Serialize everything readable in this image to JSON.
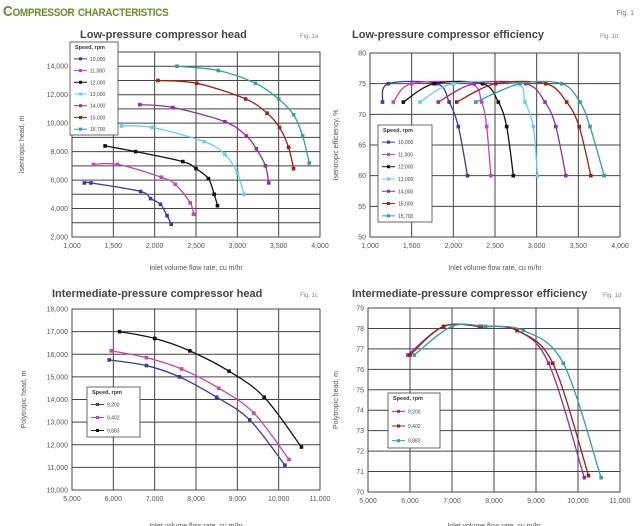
{
  "header": {
    "title": "Compressor characteristics",
    "fig": "Fig. 1"
  },
  "chart_data": [
    {
      "type": "line",
      "title": "Low-pressure compressor head",
      "fig": "Fig. 1a",
      "xlabel": "Inlet volume flow rate, cu m/hr",
      "ylabel": "Isentropic head, m",
      "xlim": [
        1000,
        4000
      ],
      "ylim": [
        2000,
        15000
      ],
      "xticks": [
        1000,
        1500,
        2000,
        2500,
        3000,
        3500,
        4000
      ],
      "yticks": [
        2000,
        4000,
        6000,
        8000,
        10000,
        12000,
        14000
      ],
      "xgrid": 500,
      "ygrid": 1000,
      "grid": true,
      "legend_title": "Speed, rpm",
      "legend_position": "top-left",
      "series": [
        {
          "name": "10,000",
          "color": "#3a3aa0",
          "points": [
            [
              1150,
              5800
            ],
            [
              1230,
              5800
            ],
            [
              1830,
              5200
            ],
            [
              1950,
              4700
            ],
            [
              2070,
              4300
            ],
            [
              2150,
              3500
            ],
            [
              2200,
              2900
            ]
          ]
        },
        {
          "name": "11,000",
          "color": "#d040b0",
          "points": [
            [
              1260,
              7100
            ],
            [
              1550,
              7100
            ],
            [
              2080,
              6200
            ],
            [
              2250,
              5700
            ],
            [
              2430,
              4400
            ],
            [
              2470,
              3600
            ]
          ]
        },
        {
          "name": "12,000",
          "color": "#111111",
          "points": [
            [
              1400,
              8400
            ],
            [
              1770,
              8000
            ],
            [
              2340,
              7300
            ],
            [
              2500,
              6800
            ],
            [
              2650,
              6100
            ],
            [
              2720,
              5000
            ],
            [
              2760,
              4200
            ]
          ]
        },
        {
          "name": "13,000",
          "color": "#60d0f0",
          "points": [
            [
              1600,
              9800
            ],
            [
              1970,
              9700
            ],
            [
              2600,
              8700
            ],
            [
              2850,
              7800
            ],
            [
              3000,
              6500
            ],
            [
              3080,
              5000
            ]
          ]
        },
        {
          "name": "14,000",
          "color": "#9030a0",
          "points": [
            [
              1820,
              11300
            ],
            [
              2220,
              11100
            ],
            [
              2850,
              10100
            ],
            [
              3110,
              9100
            ],
            [
              3230,
              8200
            ],
            [
              3340,
              7000
            ],
            [
              3380,
              5800
            ]
          ]
        },
        {
          "name": "15,000",
          "color": "#a02010",
          "points": [
            [
              2040,
              13000
            ],
            [
              2510,
              12800
            ],
            [
              3100,
              11700
            ],
            [
              3360,
              10700
            ],
            [
              3510,
              9700
            ],
            [
              3620,
              8300
            ],
            [
              3680,
              6800
            ]
          ]
        },
        {
          "name": "15,700",
          "color": "#30a0a0",
          "points": [
            [
              2270,
              14000
            ],
            [
              2770,
              13700
            ],
            [
              3220,
              12800
            ],
            [
              3500,
              11700
            ],
            [
              3680,
              10600
            ],
            [
              3790,
              9100
            ],
            [
              3870,
              7200
            ]
          ]
        }
      ]
    },
    {
      "type": "line",
      "title": "Low-pressure compressor efficiency",
      "fig": "Fig. 1b",
      "xlabel": "Inlet volume flow rate, cu m/hr",
      "ylabel": "Isentropic efficiency, %",
      "xlim": [
        1000,
        4000
      ],
      "ylim": [
        50,
        80
      ],
      "xticks": [
        1000,
        1500,
        2000,
        2500,
        3000,
        3500,
        4000
      ],
      "yticks": [
        50,
        55,
        60,
        65,
        70,
        75,
        80
      ],
      "xgrid": 500,
      "ygrid": 5,
      "grid": true,
      "legend_title": "Speed, rpm",
      "legend_position": "bottom-left",
      "series": [
        {
          "name": "10,000",
          "color": "#3a3aa0",
          "points": [
            [
              1150,
              72
            ],
            [
              1220,
              75
            ],
            [
              1800,
              75
            ],
            [
              1950,
              72
            ],
            [
              2060,
              68
            ],
            [
              2170,
              60
            ]
          ]
        },
        {
          "name": "11,000",
          "color": "#d040b0",
          "points": [
            [
              1280,
              72
            ],
            [
              1500,
              75
            ],
            [
              2200,
              75
            ],
            [
              2340,
              72
            ],
            [
              2400,
              68
            ],
            [
              2450,
              60
            ]
          ]
        },
        {
          "name": "12,000",
          "color": "#111111",
          "points": [
            [
              1400,
              72
            ],
            [
              1770,
              75
            ],
            [
              2350,
              75
            ],
            [
              2540,
              72
            ],
            [
              2640,
              68
            ],
            [
              2720,
              60
            ]
          ]
        },
        {
          "name": "13,000",
          "color": "#60d0f0",
          "points": [
            [
              1600,
              72
            ],
            [
              2000,
              75
            ],
            [
              2750,
              75
            ],
            [
              2860,
              72
            ],
            [
              2960,
              68
            ],
            [
              3010,
              60
            ]
          ]
        },
        {
          "name": "14,000",
          "color": "#9030a0",
          "points": [
            [
              1820,
              72
            ],
            [
              2250,
              75
            ],
            [
              2870,
              75
            ],
            [
              3100,
              72
            ],
            [
              3230,
              68
            ],
            [
              3350,
              60
            ]
          ]
        },
        {
          "name": "15,000",
          "color": "#a02010",
          "points": [
            [
              2040,
              72
            ],
            [
              2510,
              75
            ],
            [
              3110,
              75
            ],
            [
              3360,
              72
            ],
            [
              3510,
              68
            ],
            [
              3650,
              60
            ]
          ]
        },
        {
          "name": "15,700",
          "color": "#30a0a0",
          "points": [
            [
              2270,
              72
            ],
            [
              2800,
              75
            ],
            [
              3300,
              75
            ],
            [
              3520,
              72
            ],
            [
              3640,
              68
            ],
            [
              3810,
              60
            ]
          ]
        }
      ]
    },
    {
      "type": "line",
      "title": "Intermediate-pressure compressor head",
      "fig": "Fig. 1c",
      "xlabel": "Inlet volume flow rate, cu m/hr",
      "ylabel": "Polytropic head, m",
      "xlim": [
        5000,
        11000
      ],
      "ylim": [
        10000,
        18000
      ],
      "xticks": [
        5000,
        6000,
        7000,
        8000,
        9000,
        10000,
        11000
      ],
      "yticks": [
        10000,
        11000,
        12000,
        13000,
        14000,
        15000,
        16000,
        17000,
        18000
      ],
      "xgrid": 1000,
      "ygrid": 1000,
      "grid": true,
      "legend_title": "Speed, rpm",
      "legend_position": "center-left",
      "series": [
        {
          "name": "9,200",
          "color": "#3a3aa0",
          "points": [
            [
              5900,
              15750
            ],
            [
              6800,
              15500
            ],
            [
              7600,
              15000
            ],
            [
              8500,
              14100
            ],
            [
              9300,
              13100
            ],
            [
              10150,
              11100
            ]
          ]
        },
        {
          "name": "9,402",
          "color": "#d040b0",
          "points": [
            [
              5950,
              16150
            ],
            [
              6800,
              15850
            ],
            [
              7650,
              15350
            ],
            [
              8550,
              14500
            ],
            [
              9400,
              13400
            ],
            [
              10250,
              11350
            ]
          ]
        },
        {
          "name": "9,883",
          "color": "#111111",
          "points": [
            [
              6150,
              17000
            ],
            [
              7000,
              16700
            ],
            [
              7850,
              16150
            ],
            [
              8800,
              15250
            ],
            [
              9650,
              14100
            ],
            [
              10550,
              11900
            ]
          ]
        }
      ]
    },
    {
      "type": "line",
      "title": "Intermediate-pressure compressor efficiency",
      "fig": "Fig. 1d",
      "xlabel": "Inlet volume flow rate, cu m/hr",
      "ylabel": "Polytropic head, m",
      "xlim": [
        5000,
        11000
      ],
      "ylim": [
        70,
        79
      ],
      "xticks": [
        5000,
        6000,
        7000,
        8000,
        9000,
        10000,
        11000
      ],
      "yticks": [
        70,
        71,
        72,
        73,
        74,
        75,
        76,
        77,
        78,
        79
      ],
      "xgrid": 1000,
      "ygrid": 1,
      "grid": true,
      "legend_title": "Speed, rpm",
      "legend_position": "center-left",
      "series": [
        {
          "name": "9,200",
          "color": "#9030a0",
          "points": [
            [
              5950,
              76.7
            ],
            [
              6800,
              78.1
            ],
            [
              7650,
              78.1
            ],
            [
              8550,
              77.9
            ],
            [
              9300,
              76.3
            ],
            [
              10150,
              70.7
            ]
          ]
        },
        {
          "name": "9,402",
          "color": "#a02010",
          "points": [
            [
              6000,
              76.7
            ],
            [
              6800,
              78.1
            ],
            [
              7700,
              78.1
            ],
            [
              8550,
              77.9
            ],
            [
              9400,
              76.3
            ],
            [
              10250,
              70.8
            ]
          ]
        },
        {
          "name": "9,883",
          "color": "#30a0a0",
          "points": [
            [
              6100,
              76.7
            ],
            [
              7000,
              78.1
            ],
            [
              7800,
              78.1
            ],
            [
              8700,
              77.9
            ],
            [
              9650,
              76.3
            ],
            [
              10550,
              70.7
            ]
          ]
        }
      ]
    }
  ]
}
